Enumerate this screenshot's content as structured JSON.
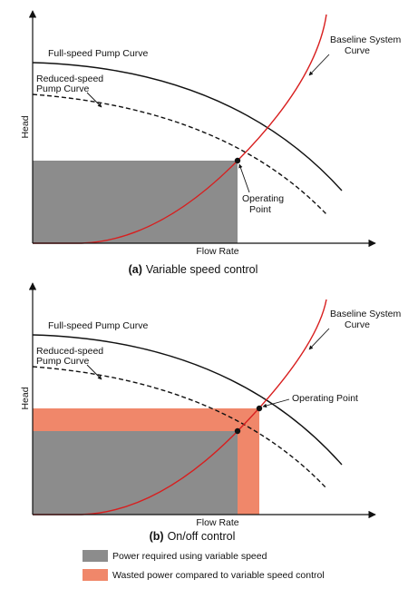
{
  "colors": {
    "power_required": "#8c8c8c",
    "wasted_power": "#f0876a",
    "system_curve": "#d81e1e",
    "pump_curves": "#111111"
  },
  "panel_a": {
    "caption_tag": "(a)",
    "caption_text": "Variable speed control",
    "y_axis_label": "Head",
    "x_axis_label": "Flow Rate",
    "full_speed_label": "Full-speed Pump Curve",
    "reduced_speed_label_line1": "Reduced-speed",
    "reduced_speed_label_line2": "Pump Curve",
    "system_curve_label_line1": "Baseline System",
    "system_curve_label_line2": "Curve",
    "operating_point_line1": "Operating",
    "operating_point_line2": "Point"
  },
  "panel_b": {
    "caption_tag": "(b)",
    "caption_text": "On/off control",
    "y_axis_label": "Head",
    "x_axis_label": "Flow Rate",
    "full_speed_label": "Full-speed Pump Curve",
    "reduced_speed_label_line1": "Reduced-speed",
    "reduced_speed_label_line2": "Pump Curve",
    "system_curve_label_line1": "Baseline System",
    "system_curve_label_line2": "Curve",
    "operating_point_label": "Operating Point"
  },
  "legend": [
    {
      "label": "Power required using variable speed",
      "color_key": "power_required"
    },
    {
      "label": "Wasted power compared to variable speed control",
      "color_key": "wasted_power"
    }
  ],
  "icons": {
    "axis_arrow": "arrowhead",
    "operating_point": "filled-dot"
  }
}
